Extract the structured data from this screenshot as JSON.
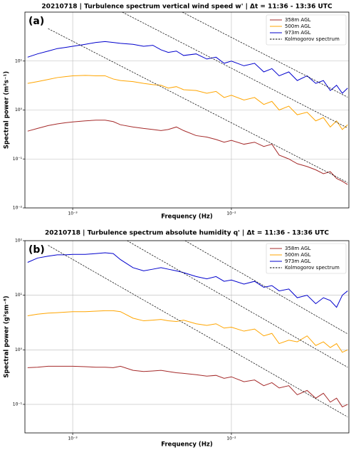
{
  "chart_data": [
    {
      "type": "line",
      "panel_label": "(a)",
      "title": "20210718 | Turbulence spectrum vertical wind speed w' | Δt = 11:36 - 13:36 UTC",
      "x_label": "Frequency (Hz)",
      "y_label": "Spectral power (m²s⁻¹)",
      "xscale": "log",
      "yscale": "log",
      "grid": true,
      "legend": "upper right",
      "xlim": [
        0.0005,
        0.055
      ],
      "ylim": [
        0.01,
        100
      ],
      "xticks": [
        {
          "value": 0.001,
          "label": "10⁻³"
        },
        {
          "value": 0.01,
          "label": "10⁻²"
        }
      ],
      "yticks": [
        {
          "value": 0.01,
          "label": "10⁻²"
        },
        {
          "value": 0.1,
          "label": "10⁻¹"
        },
        {
          "value": 1,
          "label": "10⁰"
        },
        {
          "value": 10,
          "label": "10¹"
        }
      ],
      "x": [
        0.00052,
        0.0006,
        0.0007,
        0.0008,
        0.0009,
        0.001,
        0.0012,
        0.0014,
        0.0016,
        0.0018,
        0.002,
        0.0024,
        0.0028,
        0.0032,
        0.0036,
        0.004,
        0.0045,
        0.005,
        0.006,
        0.007,
        0.008,
        0.009,
        0.01,
        0.012,
        0.014,
        0.016,
        0.018,
        0.02,
        0.023,
        0.026,
        0.03,
        0.034,
        0.038,
        0.042,
        0.046,
        0.05,
        0.054
      ],
      "series": [
        {
          "name": "358m AGL",
          "color": "#a52a2a",
          "values": [
            0.37,
            0.42,
            0.48,
            0.52,
            0.55,
            0.57,
            0.6,
            0.62,
            0.62,
            0.58,
            0.5,
            0.45,
            0.42,
            0.4,
            0.38,
            0.4,
            0.45,
            0.38,
            0.3,
            0.28,
            0.25,
            0.22,
            0.24,
            0.2,
            0.22,
            0.18,
            0.2,
            0.12,
            0.1,
            0.08,
            0.07,
            0.06,
            0.05,
            0.055,
            0.04,
            0.035,
            0.03
          ]
        },
        {
          "name": "500m AGL",
          "color": "#ffa500",
          "values": [
            3.5,
            3.8,
            4.2,
            4.6,
            4.8,
            5,
            5.1,
            5,
            5,
            4.3,
            4,
            3.8,
            3.5,
            3.3,
            3.2,
            2.8,
            3,
            2.6,
            2.5,
            2.2,
            2.4,
            1.8,
            2,
            1.6,
            1.8,
            1.3,
            1.5,
            1.0,
            1.2,
            0.8,
            0.9,
            0.6,
            0.7,
            0.45,
            0.6,
            0.4,
            0.5
          ]
        },
        {
          "name": "973m AGL",
          "color": "#0000cd",
          "values": [
            12,
            14,
            16,
            18,
            19,
            20,
            22,
            24,
            25,
            24,
            23,
            22,
            20,
            21,
            17,
            15,
            16,
            13,
            14,
            11,
            12,
            9,
            10,
            8,
            9,
            6,
            7,
            5,
            6,
            4,
            5,
            3.5,
            4,
            2.5,
            3.2,
            2.2,
            2.8
          ]
        }
      ],
      "reference": {
        "name": "Kolmogorov spectrum",
        "color": "#000000",
        "lines": [
          {
            "x": [
              0.0007,
              0.054
            ],
            "y": [
              46,
              0.033
            ]
          },
          {
            "x": [
              0.00205,
              0.054
            ],
            "y": [
              100,
              0.43
            ]
          },
          {
            "x": [
              0.0049,
              0.054
            ],
            "y": [
              100,
              1.83
            ]
          }
        ]
      }
    },
    {
      "type": "line",
      "panel_label": "(b)",
      "title": "20210718 | Turbulence spectrum absolute humidity q' | Δt = 11:36 - 13:36 UTC",
      "x_label": "Frequency (Hz)",
      "y_label": "Spectral power (g²sm⁻⁶)",
      "xscale": "log",
      "yscale": "log",
      "grid": true,
      "legend": "upper right",
      "xlim": [
        0.0005,
        0.055
      ],
      "ylim": [
        0.03,
        100
      ],
      "xticks": [
        {
          "value": 0.001,
          "label": "10⁻³"
        },
        {
          "value": 0.01,
          "label": "10⁻²"
        }
      ],
      "yticks": [
        {
          "value": 0.1,
          "label": "10⁻¹"
        },
        {
          "value": 1,
          "label": "10⁰"
        },
        {
          "value": 10,
          "label": "10¹"
        },
        {
          "value": 100,
          "label": "10²"
        }
      ],
      "x": [
        0.00052,
        0.0006,
        0.0007,
        0.0008,
        0.0009,
        0.001,
        0.0012,
        0.0014,
        0.0016,
        0.0018,
        0.002,
        0.0024,
        0.0028,
        0.0032,
        0.0036,
        0.004,
        0.0045,
        0.005,
        0.006,
        0.007,
        0.008,
        0.009,
        0.01,
        0.012,
        0.014,
        0.016,
        0.018,
        0.02,
        0.023,
        0.026,
        0.03,
        0.034,
        0.038,
        0.042,
        0.046,
        0.05,
        0.054
      ],
      "series": [
        {
          "name": "358m AGL",
          "color": "#a52a2a",
          "values": [
            0.47,
            0.48,
            0.5,
            0.5,
            0.5,
            0.5,
            0.49,
            0.48,
            0.48,
            0.47,
            0.5,
            0.42,
            0.4,
            0.41,
            0.42,
            0.4,
            0.38,
            0.37,
            0.35,
            0.33,
            0.34,
            0.3,
            0.32,
            0.26,
            0.28,
            0.22,
            0.25,
            0.2,
            0.22,
            0.15,
            0.18,
            0.13,
            0.16,
            0.11,
            0.13,
            0.09,
            0.1
          ]
        },
        {
          "name": "500m AGL",
          "color": "#ffa500",
          "values": [
            4.2,
            4.5,
            4.7,
            4.8,
            4.9,
            5,
            5,
            5.1,
            5.2,
            5.2,
            5,
            3.8,
            3.4,
            3.5,
            3.6,
            3.4,
            3.3,
            3.5,
            3,
            2.8,
            3,
            2.5,
            2.6,
            2.2,
            2.4,
            1.8,
            2,
            1.3,
            1.5,
            1.4,
            1.8,
            1.2,
            1.4,
            1.1,
            1.3,
            0.9,
            1.0
          ]
        },
        {
          "name": "973m AGL",
          "color": "#0000cd",
          "values": [
            40,
            48,
            52,
            55,
            55,
            56,
            56,
            58,
            60,
            58,
            45,
            32,
            28,
            30,
            32,
            30,
            28,
            26,
            22,
            20,
            22,
            18,
            19,
            16,
            18,
            14,
            15,
            12,
            13,
            9,
            10,
            7,
            9,
            8,
            6,
            10,
            12
          ]
        }
      ],
      "reference": {
        "name": "Kolmogorov spectrum",
        "color": "#000000",
        "lines": [
          {
            "x": [
              0.0007,
              0.054
            ],
            "y": [
              82,
              0.059
            ]
          },
          {
            "x": [
              0.0022,
              0.054
            ],
            "y": [
              100,
              0.48
            ]
          },
          {
            "x": [
              0.0051,
              0.054
            ],
            "y": [
              100,
              1.96
            ]
          }
        ]
      }
    }
  ]
}
